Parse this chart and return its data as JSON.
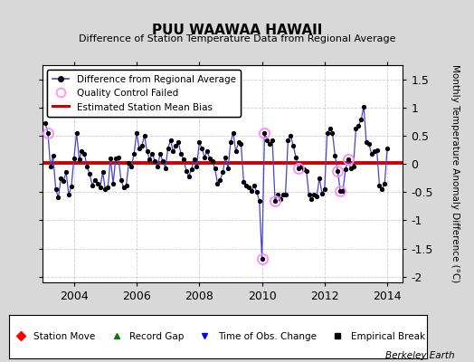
{
  "title": "PUU WAAWAA HAWAII",
  "subtitle": "Difference of Station Temperature Data from Regional Average",
  "ylabel": "Monthly Temperature Anomaly Difference (°C)",
  "bias": 0.02,
  "ylim": [
    -2.1,
    1.75
  ],
  "yticks": [
    -2,
    -1.5,
    -1,
    -0.5,
    0,
    0.5,
    1,
    1.5
  ],
  "yticklabels": [
    "-2",
    "-1.5",
    "-1",
    "-0.5",
    "0",
    "0.5",
    "1",
    "1.5"
  ],
  "background_color": "#d8d8d8",
  "plot_bg_color": "#ffffff",
  "series_color": "#4444cc",
  "bias_color": "#cc0000",
  "qc_color": "#ff88ff",
  "marker_color": "#000000",
  "times": [
    2003.083,
    2003.167,
    2003.25,
    2003.333,
    2003.417,
    2003.5,
    2003.583,
    2003.667,
    2003.75,
    2003.833,
    2003.917,
    2004.0,
    2004.083,
    2004.167,
    2004.25,
    2004.333,
    2004.417,
    2004.5,
    2004.583,
    2004.667,
    2004.75,
    2004.833,
    2004.917,
    2005.0,
    2005.083,
    2005.167,
    2005.25,
    2005.333,
    2005.417,
    2005.5,
    2005.583,
    2005.667,
    2005.75,
    2005.833,
    2005.917,
    2006.0,
    2006.083,
    2006.167,
    2006.25,
    2006.333,
    2006.417,
    2006.5,
    2006.583,
    2006.667,
    2006.75,
    2006.833,
    2006.917,
    2007.0,
    2007.083,
    2007.167,
    2007.25,
    2007.333,
    2007.417,
    2007.5,
    2007.583,
    2007.667,
    2007.75,
    2007.833,
    2007.917,
    2008.0,
    2008.083,
    2008.167,
    2008.25,
    2008.333,
    2008.417,
    2008.5,
    2008.583,
    2008.667,
    2008.75,
    2008.833,
    2008.917,
    2009.0,
    2009.083,
    2009.167,
    2009.25,
    2009.333,
    2009.417,
    2009.5,
    2009.583,
    2009.667,
    2009.75,
    2009.833,
    2009.917,
    2010.0,
    2010.083,
    2010.167,
    2010.25,
    2010.333,
    2010.417,
    2010.5,
    2010.583,
    2010.667,
    2010.75,
    2010.833,
    2010.917,
    2011.0,
    2011.083,
    2011.167,
    2011.25,
    2011.333,
    2011.417,
    2011.5,
    2011.583,
    2011.667,
    2011.75,
    2011.833,
    2011.917,
    2012.0,
    2012.083,
    2012.167,
    2012.25,
    2012.333,
    2012.417,
    2012.5,
    2012.583,
    2012.667,
    2012.75,
    2012.833,
    2012.917,
    2013.0,
    2013.083,
    2013.167,
    2013.25,
    2013.333,
    2013.417,
    2013.5,
    2013.583,
    2013.667,
    2013.75,
    2013.833,
    2013.917,
    2014.0
  ],
  "values": [
    0.72,
    0.55,
    -0.05,
    0.15,
    -0.45,
    -0.6,
    -0.25,
    -0.3,
    -0.15,
    -0.55,
    -0.4,
    0.1,
    0.55,
    0.08,
    0.22,
    0.18,
    -0.05,
    -0.18,
    -0.38,
    -0.28,
    -0.35,
    -0.42,
    -0.15,
    -0.45,
    -0.42,
    0.1,
    -0.35,
    0.1,
    0.12,
    -0.28,
    -0.42,
    -0.38,
    0.02,
    -0.05,
    0.18,
    0.55,
    0.28,
    0.32,
    0.5,
    0.22,
    0.08,
    0.18,
    0.05,
    -0.05,
    0.18,
    0.05,
    -0.08,
    0.28,
    0.42,
    0.22,
    0.32,
    0.38,
    0.18,
    0.08,
    -0.12,
    -0.22,
    -0.1,
    0.08,
    -0.05,
    0.38,
    0.28,
    0.12,
    0.22,
    0.1,
    0.05,
    -0.08,
    -0.35,
    -0.28,
    -0.15,
    0.12,
    -0.08,
    0.38,
    0.55,
    0.22,
    0.38,
    0.35,
    -0.32,
    -0.38,
    -0.42,
    -0.48,
    -0.38,
    -0.5,
    -0.65,
    -1.68,
    0.55,
    0.42,
    0.35,
    0.42,
    -0.65,
    -0.55,
    -0.62,
    -0.55,
    -0.55,
    0.42,
    0.5,
    0.32,
    0.12,
    -0.08,
    -0.05,
    -0.1,
    -0.12,
    -0.55,
    -0.62,
    -0.55,
    -0.58,
    -0.25,
    -0.52,
    -0.45,
    0.55,
    0.62,
    0.55,
    0.15,
    -0.12,
    -0.48,
    -0.48,
    -0.1,
    0.08,
    -0.08,
    -0.05,
    0.62,
    0.68,
    0.78,
    1.02,
    0.38,
    0.35,
    0.18,
    0.22,
    0.25,
    -0.38,
    -0.45,
    -0.35,
    0.28
  ],
  "qc_failed_indices": [
    1,
    83,
    84,
    88,
    97,
    112,
    113,
    116
  ],
  "xlim": [
    2003.0,
    2014.5
  ],
  "xticks": [
    2004,
    2006,
    2008,
    2010,
    2012,
    2014
  ],
  "xticklabels": [
    "2004",
    "2006",
    "2008",
    "2010",
    "2012",
    "2014"
  ],
  "berkeley_earth_text": "Berkeley Earth",
  "legend1_labels": [
    "Difference from Regional Average",
    "Quality Control Failed",
    "Estimated Station Mean Bias"
  ],
  "legend2_labels": [
    "Station Move",
    "Record Gap",
    "Time of Obs. Change",
    "Empirical Break"
  ]
}
